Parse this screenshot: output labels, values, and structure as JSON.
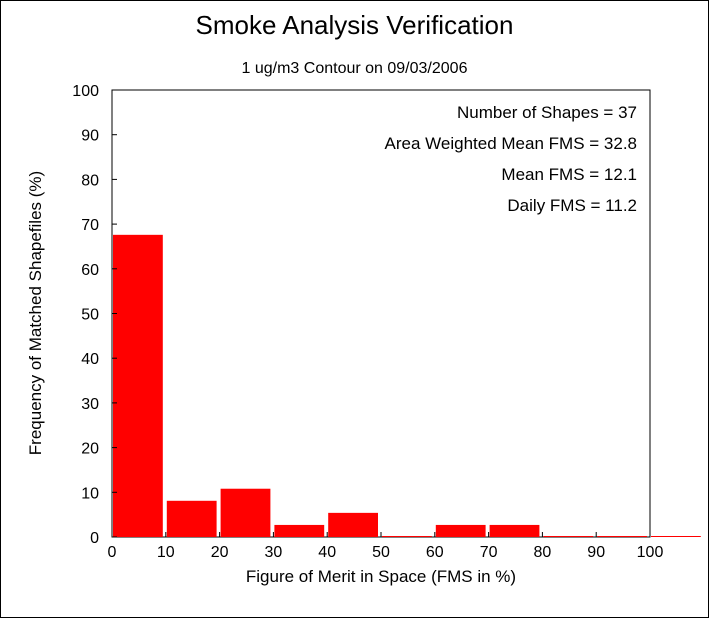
{
  "chart_data": {
    "type": "bar",
    "title": "Smoke Analysis Verification",
    "subtitle": "1 ug/m3 Contour on 09/03/2006",
    "xlabel": "Figure of Merit in Space (FMS in %)",
    "ylabel": "Frequency of Matched Shapefiles (%)",
    "x_ticks": [
      0,
      10,
      20,
      30,
      40,
      50,
      60,
      70,
      80,
      90,
      100
    ],
    "y_ticks": [
      0,
      10,
      20,
      30,
      40,
      50,
      60,
      70,
      80,
      90,
      100
    ],
    "xlim": [
      0,
      100
    ],
    "ylim": [
      0,
      100
    ],
    "grid": false,
    "bin_width": 10,
    "bins": [
      0,
      10,
      20,
      30,
      40,
      50,
      60,
      70,
      80,
      90,
      100
    ],
    "values": [
      67.6,
      8.1,
      10.8,
      2.7,
      5.4,
      0,
      2.7,
      2.7,
      0,
      0,
      0
    ],
    "bar_color": "#ff0000",
    "annotations": [
      "Number of Shapes = 37",
      "Area Weighted Mean FMS = 32.8",
      "Mean FMS = 12.1",
      "Daily FMS = 11.2"
    ]
  }
}
